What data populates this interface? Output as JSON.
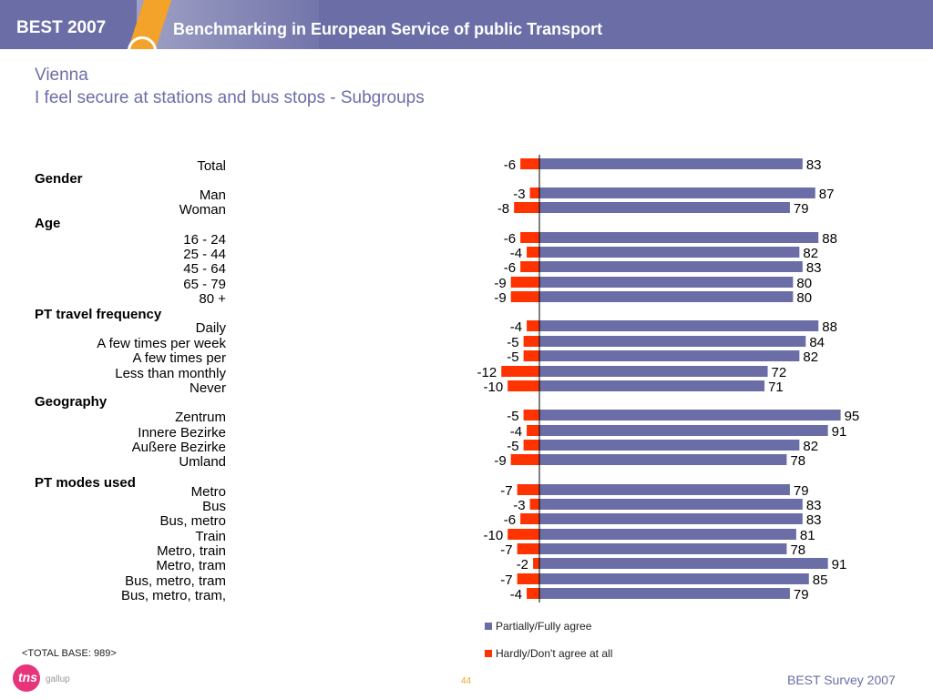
{
  "header": {
    "brand": "BEST 2007",
    "title": "Benchmarking in European Service of public Transport"
  },
  "page": {
    "title": "Vienna",
    "subtitle": "I feel secure at stations and bus stops - Subgroups",
    "base_note": "<TOTAL BASE: 989>",
    "page_number": "44",
    "footer": "BEST Survey 2007",
    "logo_text": "tns",
    "logo_sub": "gallup"
  },
  "colors": {
    "agree": "#6b6ea6",
    "disagree": "#ff3300",
    "header_bg": "#6b6ea6",
    "accent": "#f3a32a"
  },
  "chart_data": {
    "type": "bar",
    "orientation": "horizontal-diverging",
    "series": [
      {
        "name": "Partially/Fully agree",
        "color": "#6b6ea6"
      },
      {
        "name": "Hardly/Don't agree at all",
        "color": "#ff3300"
      }
    ],
    "groups": [
      {
        "label": "Gender"
      },
      {
        "label": "Age"
      },
      {
        "label": "PT travel frequency"
      },
      {
        "label": "Geography"
      },
      {
        "label": "PT modes used"
      }
    ],
    "rows": [
      {
        "label": "Total",
        "group": null,
        "agree": 83,
        "disagree": -6
      },
      {
        "label": "Man",
        "group": "Gender",
        "agree": 87,
        "disagree": -3
      },
      {
        "label": "Woman",
        "group": "Gender",
        "agree": 79,
        "disagree": -8
      },
      {
        "label": "16 - 24",
        "group": "Age",
        "agree": 88,
        "disagree": -6
      },
      {
        "label": "25 - 44",
        "group": "Age",
        "agree": 82,
        "disagree": -4
      },
      {
        "label": "45 - 64",
        "group": "Age",
        "agree": 83,
        "disagree": -6
      },
      {
        "label": "65 - 79",
        "group": "Age",
        "agree": 80,
        "disagree": -9
      },
      {
        "label": "80 +",
        "group": "Age",
        "agree": 80,
        "disagree": -9
      },
      {
        "label": "Daily",
        "group": "PT travel frequency",
        "agree": 88,
        "disagree": -4
      },
      {
        "label": "A few times per week",
        "group": "PT travel frequency",
        "agree": 84,
        "disagree": -5
      },
      {
        "label": "A few times per",
        "group": "PT travel frequency",
        "agree": 82,
        "disagree": -5
      },
      {
        "label": "Less than monthly",
        "group": "PT travel frequency",
        "agree": 72,
        "disagree": -12
      },
      {
        "label": "Never",
        "group": "PT travel frequency",
        "agree": 71,
        "disagree": -10
      },
      {
        "label": "Zentrum",
        "group": "Geography",
        "agree": 95,
        "disagree": -5
      },
      {
        "label": "Innere Bezirke",
        "group": "Geography",
        "agree": 91,
        "disagree": -4
      },
      {
        "label": "Außere Bezirke",
        "group": "Geography",
        "agree": 82,
        "disagree": -5
      },
      {
        "label": "Umland",
        "group": "Geography",
        "agree": 78,
        "disagree": -9
      },
      {
        "label": "Metro",
        "group": "PT modes used",
        "agree": 79,
        "disagree": -7
      },
      {
        "label": "Bus",
        "group": "PT modes used",
        "agree": 83,
        "disagree": -3
      },
      {
        "label": "Bus, metro",
        "group": "PT modes used",
        "agree": 83,
        "disagree": -6
      },
      {
        "label": "Train",
        "group": "PT modes used",
        "agree": 81,
        "disagree": -10
      },
      {
        "label": "Metro, train",
        "group": "PT modes used",
        "agree": 78,
        "disagree": -7
      },
      {
        "label": "Metro, tram",
        "group": "PT modes used",
        "agree": 91,
        "disagree": -2
      },
      {
        "label": "Bus, metro, tram",
        "group": "PT modes used",
        "agree": 85,
        "disagree": -7
      },
      {
        "label": "Bus, metro, tram,",
        "group": "PT modes used",
        "agree": 79,
        "disagree": -4
      }
    ],
    "legend_position": "bottom",
    "grid": false
  }
}
